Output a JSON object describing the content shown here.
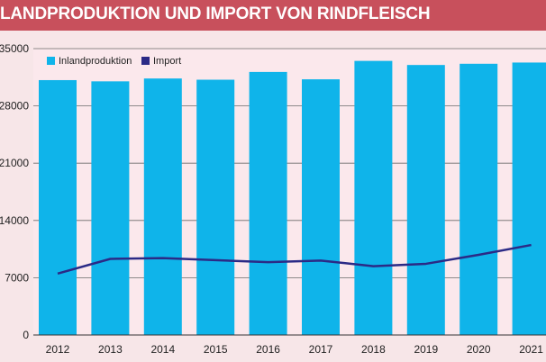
{
  "header": {
    "title": "LANDPRODUKTION UND IMPORT VON RINDFLEISCH"
  },
  "chart_data": {
    "type": "bar",
    "title": "LANDPRODUKTION UND IMPORT VON RINDFLEISCH",
    "xlabel": "",
    "ylabel": "",
    "categories": [
      "2012",
      "2013",
      "2014",
      "2015",
      "2016",
      "2017",
      "2018",
      "2019",
      "2020",
      "2021"
    ],
    "ylim": [
      0,
      35000
    ],
    "ytick_labels": [
      "0",
      "7000",
      "14000",
      "21000",
      "28000",
      "35000"
    ],
    "ytick_values": [
      0,
      7000,
      14000,
      21000,
      28000,
      35000
    ],
    "grid": true,
    "legend_position": "top-left",
    "series": [
      {
        "name": "Inlandproduktion",
        "type": "bar",
        "color": "#0fb4ea",
        "values": [
          31150,
          31000,
          31350,
          31200,
          32150,
          31250,
          33500,
          33000,
          33150,
          33300
        ]
      },
      {
        "name": "Import",
        "type": "line",
        "color": "#2b2a86",
        "values": [
          7500,
          9300,
          9400,
          9150,
          8900,
          9100,
          8400,
          8700,
          9800,
          11000
        ]
      }
    ]
  }
}
